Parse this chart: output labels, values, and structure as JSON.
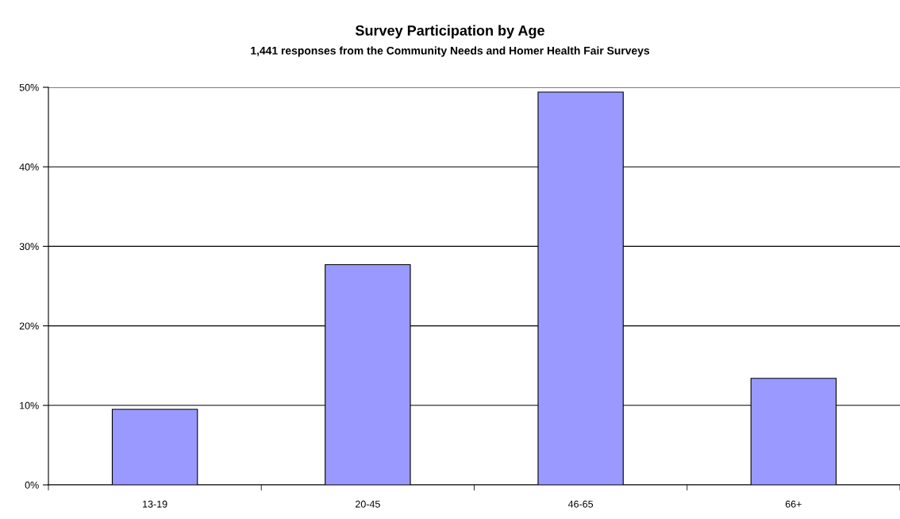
{
  "chart_data": {
    "type": "bar",
    "title": "Survey Participation by Age",
    "subtitle": "1,441 responses from the Community Needs and Homer Health Fair Surveys",
    "categories": [
      "13-19",
      "20-45",
      "46-65",
      "66+"
    ],
    "values": [
      9.5,
      27.7,
      49.4,
      13.4
    ],
    "color": "#9999ff",
    "ylim": [
      0,
      50
    ],
    "yticks": [
      {
        "value": 0,
        "label": "0%"
      },
      {
        "value": 10,
        "label": "10%"
      },
      {
        "value": 20,
        "label": "20%"
      },
      {
        "value": 30,
        "label": "30%"
      },
      {
        "value": 40,
        "label": "40%"
      },
      {
        "value": 50,
        "label": "50%"
      }
    ],
    "grid": "y",
    "legend": false
  }
}
